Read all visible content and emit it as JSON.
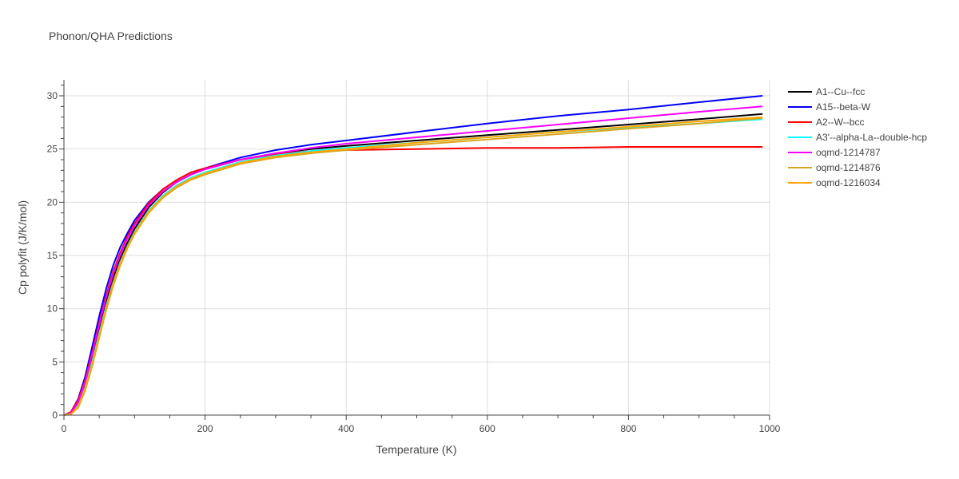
{
  "chart_data": {
    "type": "line",
    "title": "Phonon/QHA Predictions",
    "xlabel": "Temperature (K)",
    "ylabel": "Cp polyfit (J/K/mol)",
    "xlim": [
      0,
      1000
    ],
    "ylim": [
      0,
      31.5
    ],
    "x_ticks": [
      0,
      200,
      400,
      600,
      800,
      1000
    ],
    "y_ticks": [
      0,
      5,
      10,
      15,
      20,
      25,
      30
    ],
    "grid": true,
    "legend_position": "right",
    "series": [
      {
        "name": "A1--Cu--fcc",
        "color": "#000000",
        "x": [
          0,
          10,
          20,
          30,
          40,
          50,
          60,
          70,
          80,
          90,
          100,
          120,
          140,
          160,
          180,
          200,
          250,
          300,
          350,
          400,
          500,
          600,
          700,
          800,
          900,
          990
        ],
        "y": [
          0,
          0.2,
          1.1,
          2.9,
          5.4,
          8.1,
          10.7,
          12.9,
          14.7,
          16.2,
          17.5,
          19.5,
          20.9,
          21.9,
          22.6,
          23.1,
          24.0,
          24.6,
          25.0,
          25.3,
          25.8,
          26.3,
          26.8,
          27.3,
          27.8,
          28.3
        ]
      },
      {
        "name": "A15--beta-W",
        "color": "#0000ff",
        "x": [
          0,
          10,
          20,
          30,
          40,
          50,
          60,
          70,
          80,
          90,
          100,
          120,
          140,
          160,
          180,
          200,
          250,
          300,
          350,
          400,
          500,
          600,
          700,
          800,
          900,
          990
        ],
        "y": [
          0,
          0.3,
          1.5,
          3.6,
          6.4,
          9.3,
          11.9,
          14.1,
          15.8,
          17.1,
          18.3,
          20.0,
          21.2,
          22.1,
          22.8,
          23.2,
          24.2,
          24.9,
          25.4,
          25.8,
          26.6,
          27.4,
          28.1,
          28.7,
          29.4,
          30.0
        ]
      },
      {
        "name": "A2--W--bcc",
        "color": "#ff0000",
        "x": [
          0,
          10,
          20,
          30,
          40,
          50,
          60,
          70,
          80,
          90,
          100,
          120,
          140,
          160,
          180,
          200,
          250,
          300,
          350,
          400,
          500,
          600,
          700,
          800,
          900,
          990
        ],
        "y": [
          0,
          0.3,
          1.4,
          3.3,
          5.9,
          8.7,
          11.3,
          13.5,
          15.3,
          16.8,
          18.0,
          19.9,
          21.2,
          22.1,
          22.8,
          23.2,
          24.0,
          24.5,
          24.8,
          24.9,
          25.0,
          25.1,
          25.1,
          25.2,
          25.2,
          25.2
        ]
      },
      {
        "name": "A3'--alpha-La--double-hcp",
        "color": "#00ffff",
        "x": [
          0,
          10,
          20,
          30,
          40,
          50,
          60,
          70,
          80,
          90,
          100,
          120,
          140,
          160,
          180,
          200,
          250,
          300,
          350,
          400,
          500,
          600,
          700,
          800,
          900,
          990
        ],
        "y": [
          0,
          0.1,
          0.9,
          2.6,
          5.0,
          7.7,
          10.3,
          12.5,
          14.4,
          15.9,
          17.2,
          19.2,
          20.6,
          21.6,
          22.3,
          22.8,
          23.8,
          24.4,
          24.8,
          25.1,
          25.6,
          26.1,
          26.6,
          27.0,
          27.4,
          27.8
        ]
      },
      {
        "name": "oqmd-1214787",
        "color": "#ff00ff",
        "x": [
          0,
          10,
          20,
          30,
          40,
          50,
          60,
          70,
          80,
          90,
          100,
          120,
          140,
          160,
          180,
          200,
          250,
          300,
          350,
          400,
          500,
          600,
          700,
          800,
          900,
          990
        ],
        "y": [
          0,
          0.2,
          1.2,
          3.1,
          5.7,
          8.5,
          11.1,
          13.3,
          15.1,
          16.6,
          17.8,
          19.7,
          21.0,
          21.9,
          22.6,
          23.1,
          24.0,
          24.6,
          25.1,
          25.5,
          26.1,
          26.7,
          27.3,
          27.9,
          28.5,
          29.0
        ]
      },
      {
        "name": "oqmd-1214876",
        "color": "#daa520",
        "x": [
          0,
          10,
          20,
          30,
          40,
          50,
          60,
          70,
          80,
          90,
          100,
          120,
          140,
          160,
          180,
          200,
          250,
          300,
          350,
          400,
          500,
          600,
          700,
          800,
          900,
          990
        ],
        "y": [
          0,
          0.1,
          0.7,
          2.3,
          4.6,
          7.3,
          9.9,
          12.2,
          14.1,
          15.7,
          17.0,
          19.0,
          20.4,
          21.4,
          22.1,
          22.6,
          23.6,
          24.2,
          24.6,
          24.9,
          25.4,
          25.9,
          26.4,
          26.9,
          27.4,
          27.9
        ]
      },
      {
        "name": "oqmd-1216034",
        "color": "#ffa500",
        "x": [
          0,
          10,
          20,
          30,
          40,
          50,
          60,
          70,
          80,
          90,
          100,
          120,
          140,
          160,
          180,
          200,
          250,
          300,
          350,
          400,
          500,
          600,
          700,
          800,
          900,
          990
        ],
        "y": [
          0,
          0.1,
          0.8,
          2.5,
          4.8,
          7.5,
          10.1,
          12.4,
          14.3,
          15.8,
          17.1,
          19.1,
          20.5,
          21.5,
          22.2,
          22.7,
          23.7,
          24.3,
          24.7,
          25.0,
          25.6,
          26.1,
          26.6,
          27.1,
          27.6,
          28.0
        ]
      }
    ]
  }
}
